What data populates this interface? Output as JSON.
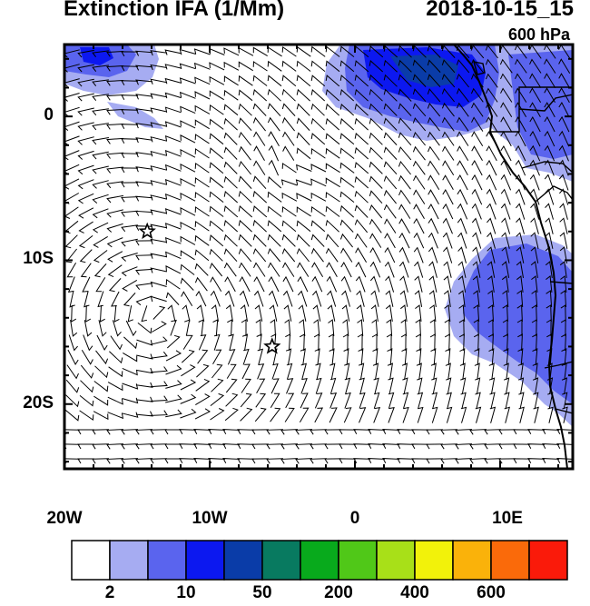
{
  "title_left": "Extinction IFA (1/Mm)",
  "title_right": "2018-10-15_15",
  "level": "600 hPa",
  "map": {
    "lon_range": [
      -20,
      15
    ],
    "lat_range": [
      -24.5,
      5
    ],
    "x_ticks": [
      {
        "lon": -20,
        "label": "20W"
      },
      {
        "lon": -10,
        "label": "10W"
      },
      {
        "lon": 0,
        "label": "0"
      },
      {
        "lon": 10,
        "label": "10E"
      }
    ],
    "y_ticks": [
      {
        "lat": 0,
        "label": "0"
      },
      {
        "lat": -10,
        "label": "10S"
      },
      {
        "lat": -20,
        "label": "20S"
      }
    ],
    "markers": [
      {
        "type": "star",
        "lon": -14.3,
        "lat": -8
      },
      {
        "type": "star",
        "lon": -5.7,
        "lat": -16
      }
    ]
  },
  "colorbar": {
    "colors": [
      "#ffffff",
      "#a6acf2",
      "#5a64ee",
      "#0c18f0",
      "#0a3ca8",
      "#087a60",
      "#08aa1c",
      "#50c818",
      "#a8e018",
      "#f2f20a",
      "#fab20a",
      "#fa6a0a",
      "#fa1a0a"
    ],
    "labels": [
      {
        "index": 1,
        "label": "2"
      },
      {
        "index": 3,
        "label": "10"
      },
      {
        "index": 5,
        "label": "50"
      },
      {
        "index": 7,
        "label": "200"
      },
      {
        "index": 9,
        "label": "400"
      },
      {
        "index": 11,
        "label": "600"
      }
    ]
  }
}
